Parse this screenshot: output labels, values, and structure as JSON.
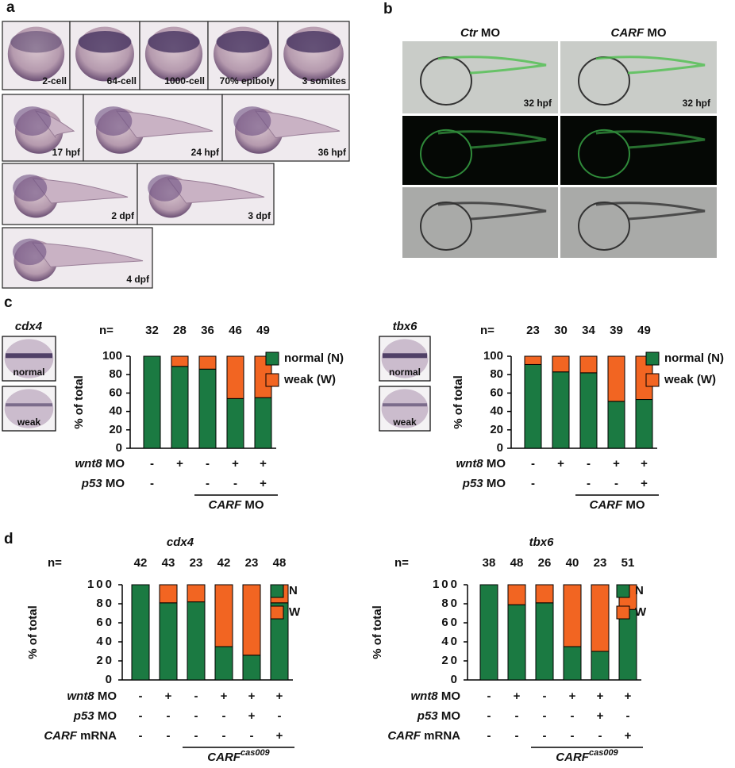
{
  "panel_a": {
    "label": "a",
    "images": [
      "2-cell",
      "64-cell",
      "1000-cell",
      "70% epiboly",
      "3 somites",
      "17 hpf",
      "24 hpf",
      "36 hpf",
      "2 dpf",
      "3 dpf",
      "4 dpf"
    ]
  },
  "panel_b": {
    "label": "b",
    "columns": [
      {
        "gene": "Ctr",
        "suffix": "MO"
      },
      {
        "gene": "CARF",
        "suffix": "MO"
      }
    ],
    "stage_labels": [
      "32 hpf",
      "32 hpf"
    ]
  },
  "panel_c": {
    "label": "c"
  },
  "panel_d": {
    "label": "d"
  },
  "chart_data": [
    {
      "type": "bar",
      "stacked": true,
      "inset": {
        "gene": "cdx4",
        "images": [
          "normal",
          "weak"
        ]
      },
      "n_label": "n=",
      "n": [
        32,
        28,
        36,
        46,
        49
      ],
      "y_label": "% of total",
      "ylim": [
        0,
        100
      ],
      "yticks": [
        0,
        20,
        40,
        60,
        80,
        100
      ],
      "series": [
        {
          "name": "normal (N)",
          "color": "#1b7a42",
          "values": [
            100,
            89,
            86,
            54,
            55
          ]
        },
        {
          "name": "weak (W)",
          "color": "#f26522",
          "values": [
            0,
            11,
            14,
            46,
            45
          ]
        }
      ],
      "conditions": [
        {
          "gene": "wnt8",
          "suffix": "MO",
          "marks": [
            "-",
            "+",
            "-",
            "+",
            "+"
          ]
        },
        {
          "gene": "p53",
          "suffix": "MO",
          "marks": [
            "-",
            null,
            "-",
            "-",
            "+"
          ]
        }
      ],
      "bracket": {
        "gene": "CARF",
        "suffix": "MO"
      }
    },
    {
      "type": "bar",
      "stacked": true,
      "inset": {
        "gene": "tbx6",
        "images": [
          "normal",
          "weak"
        ]
      },
      "n_label": "n=",
      "n": [
        23,
        30,
        34,
        39,
        49
      ],
      "y_label": "% of total",
      "ylim": [
        0,
        100
      ],
      "yticks": [
        0,
        20,
        40,
        60,
        80,
        100
      ],
      "series": [
        {
          "name": "normal (N)",
          "color": "#1b7a42",
          "values": [
            91,
            83,
            82,
            51,
            53
          ]
        },
        {
          "name": "weak (W)",
          "color": "#f26522",
          "values": [
            9,
            17,
            18,
            49,
            47
          ]
        }
      ],
      "conditions": [
        {
          "gene": "wnt8",
          "suffix": "MO",
          "marks": [
            "-",
            "+",
            "-",
            "+",
            "+"
          ]
        },
        {
          "gene": "p53",
          "suffix": "MO",
          "marks": [
            "-",
            null,
            "-",
            "-",
            "+"
          ]
        }
      ],
      "bracket": {
        "gene": "CARF",
        "suffix": "MO"
      }
    },
    {
      "type": "bar",
      "stacked": true,
      "title": "cdx4",
      "n_label": "n=",
      "n": [
        42,
        43,
        23,
        42,
        23,
        48
      ],
      "y_label": "% of total",
      "ylim": [
        0,
        100
      ],
      "yticks": [
        0,
        20,
        40,
        60,
        80,
        100
      ],
      "series": [
        {
          "name": "N",
          "color": "#1b7a42",
          "values": [
            100,
            81,
            82,
            35,
            26,
            81
          ]
        },
        {
          "name": "W",
          "color": "#f26522",
          "values": [
            0,
            19,
            18,
            65,
            74,
            19
          ]
        }
      ],
      "conditions": [
        {
          "gene": "wnt8",
          "suffix": "MO",
          "marks": [
            "-",
            "+",
            "-",
            "+",
            "+",
            "+"
          ]
        },
        {
          "gene": "p53",
          "suffix": "MO",
          "marks": [
            "-",
            "-",
            "-",
            "-",
            "+",
            "-"
          ]
        },
        {
          "gene": "CARF",
          "suffix": "mRNA",
          "marks": [
            "-",
            "-",
            "-",
            "-",
            "-",
            "+"
          ]
        }
      ],
      "bracket": {
        "gene": "CARF",
        "superscript": "cas009"
      }
    },
    {
      "type": "bar",
      "stacked": true,
      "title": "tbx6",
      "n_label": "n=",
      "n": [
        38,
        48,
        26,
        40,
        23,
        51
      ],
      "y_label": "% of total",
      "ylim": [
        0,
        100
      ],
      "yticks": [
        0,
        20,
        40,
        60,
        80,
        100
      ],
      "series": [
        {
          "name": "N",
          "color": "#1b7a42",
          "values": [
            100,
            79,
            81,
            35,
            30,
            74
          ]
        },
        {
          "name": "W",
          "color": "#f26522",
          "values": [
            0,
            21,
            19,
            65,
            70,
            26
          ]
        }
      ],
      "conditions": [
        {
          "gene": "wnt8",
          "suffix": "MO",
          "marks": [
            "-",
            "+",
            "-",
            "+",
            "+",
            "+"
          ]
        },
        {
          "gene": "p53",
          "suffix": "MO",
          "marks": [
            "-",
            "-",
            "-",
            "-",
            "+",
            "-"
          ]
        },
        {
          "gene": "CARF",
          "suffix": "mRNA",
          "marks": [
            "-",
            "-",
            "-",
            "-",
            "-",
            "+"
          ]
        }
      ],
      "bracket": {
        "gene": "CARF",
        "superscript": "cas009"
      }
    }
  ]
}
